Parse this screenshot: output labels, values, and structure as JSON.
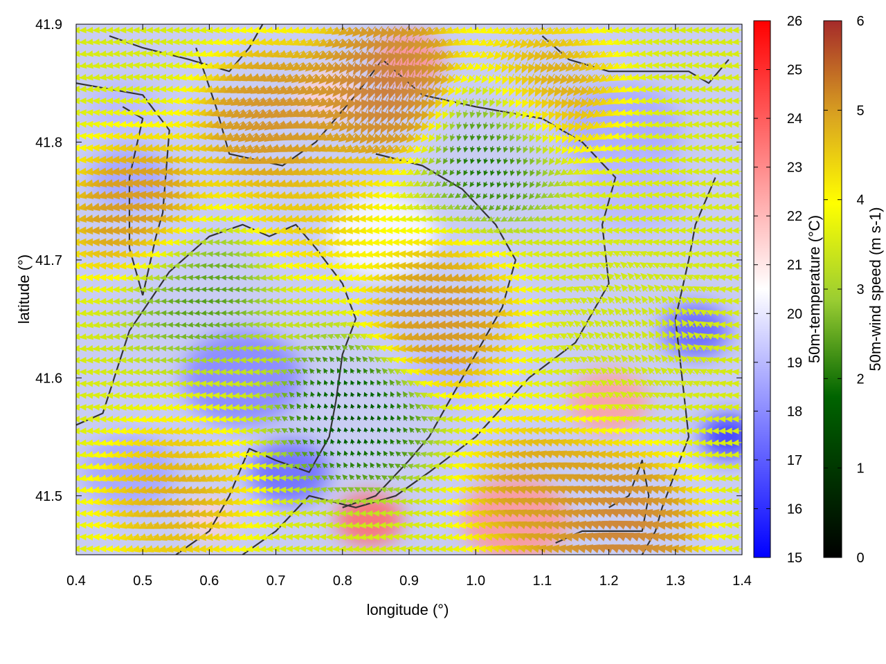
{
  "chart_data": {
    "type": "heatmap",
    "title": "",
    "xlabel": "longitude (°)",
    "ylabel": "latitude (°)",
    "xlim": [
      0.4,
      1.4
    ],
    "ylim": [
      41.45,
      41.9
    ],
    "x_ticks": [
      0.4,
      0.5,
      0.6,
      0.7,
      0.8,
      0.9,
      1.0,
      1.1,
      1.2,
      1.3,
      1.4
    ],
    "x_tick_labels": [
      "0.4",
      "0.5",
      "0.6",
      "0.7",
      "0.8",
      "0.9",
      "1.0",
      "1.1",
      "1.2",
      "1.3",
      "1.4"
    ],
    "y_ticks": [
      41.5,
      41.6,
      41.7,
      41.8,
      41.9
    ],
    "y_tick_labels": [
      "41.5",
      "41.6",
      "41.7",
      "41.8",
      "41.9"
    ],
    "grid": false,
    "temperature_colorbar": {
      "label": "50m-temperature (°C)",
      "range": [
        15,
        26
      ],
      "ticks": [
        15,
        16,
        17,
        18,
        19,
        20,
        21,
        22,
        23,
        24,
        25,
        26
      ],
      "tick_labels": [
        "15",
        "16",
        "17",
        "18",
        "19",
        "20",
        "21",
        "22",
        "23",
        "24",
        "25",
        "26"
      ],
      "colors": [
        "#0000ff",
        "#ffffff",
        "#ff0000"
      ]
    },
    "wind_colorbar": {
      "label": "50m-wind speed (m s-1)",
      "range": [
        0,
        6
      ],
      "ticks": [
        0,
        1,
        2,
        3,
        4,
        5,
        6
      ],
      "tick_labels": [
        "0",
        "1",
        "2",
        "3",
        "4",
        "5",
        "6"
      ],
      "colors": [
        "#000000",
        "#006400",
        "#9acd32",
        "#ffff00",
        "#daa520",
        "#cd853f",
        "#a52a2a"
      ]
    },
    "temperature_patches": [
      {
        "lon": 0.48,
        "lat": 41.77,
        "t": 18.5,
        "r": 0.06
      },
      {
        "lon": 0.47,
        "lat": 41.83,
        "t": 19.0,
        "r": 0.05
      },
      {
        "lon": 0.65,
        "lat": 41.6,
        "t": 17.8,
        "r": 0.09
      },
      {
        "lon": 0.48,
        "lat": 41.52,
        "t": 18.5,
        "r": 0.07
      },
      {
        "lon": 0.72,
        "lat": 41.52,
        "t": 17.2,
        "r": 0.06
      },
      {
        "lon": 0.84,
        "lat": 41.48,
        "t": 23.8,
        "r": 0.05
      },
      {
        "lon": 0.9,
        "lat": 41.87,
        "t": 23.0,
        "r": 0.05
      },
      {
        "lon": 0.78,
        "lat": 41.84,
        "t": 21.5,
        "r": 0.05
      },
      {
        "lon": 1.22,
        "lat": 41.81,
        "t": 18.6,
        "r": 0.09
      },
      {
        "lon": 1.24,
        "lat": 41.76,
        "t": 19.0,
        "r": 0.08
      },
      {
        "lon": 1.33,
        "lat": 41.64,
        "t": 17.0,
        "r": 0.05
      },
      {
        "lon": 1.38,
        "lat": 41.55,
        "t": 16.0,
        "r": 0.04
      },
      {
        "lon": 1.2,
        "lat": 41.58,
        "t": 22.6,
        "r": 0.06
      },
      {
        "lon": 1.06,
        "lat": 41.48,
        "t": 22.8,
        "r": 0.08
      },
      {
        "lon": 0.95,
        "lat": 41.6,
        "t": 19.0,
        "r": 0.06
      },
      {
        "lon": 0.6,
        "lat": 41.48,
        "t": 21.5,
        "r": 0.04
      },
      {
        "lon": 0.86,
        "lat": 41.72,
        "t": 20.5,
        "r": 0.08
      }
    ],
    "wind_field": {
      "lon_spacing": 0.01,
      "lat_spacing": 0.01,
      "regions": [
        {
          "lon": 0.87,
          "lat": 41.85,
          "speed": 5.7,
          "dir_deg": 265
        },
        {
          "lon": 0.7,
          "lat": 41.82,
          "speed": 5.0,
          "dir_deg": 220
        },
        {
          "lon": 0.5,
          "lat": 41.74,
          "speed": 4.8,
          "dir_deg": 185
        },
        {
          "lon": 0.95,
          "lat": 41.65,
          "speed": 4.8,
          "dir_deg": 190
        },
        {
          "lon": 0.75,
          "lat": 41.75,
          "speed": 3.8,
          "dir_deg": 190
        },
        {
          "lon": 0.55,
          "lat": 41.5,
          "speed": 4.2,
          "dir_deg": 200
        },
        {
          "lon": 1.1,
          "lat": 41.5,
          "speed": 4.5,
          "dir_deg": 160
        },
        {
          "lon": 1.22,
          "lat": 41.47,
          "speed": 5.5,
          "dir_deg": 160
        },
        {
          "lon": 1.1,
          "lat": 41.84,
          "speed": 4.5,
          "dir_deg": 250
        },
        {
          "lon": 0.82,
          "lat": 41.57,
          "speed": 0.4,
          "dir_deg": 90
        },
        {
          "lon": 1.03,
          "lat": 41.8,
          "speed": 0.5,
          "dir_deg": 270
        },
        {
          "lon": 0.58,
          "lat": 41.68,
          "speed": 1.2,
          "dir_deg": 180
        },
        {
          "lon": 1.25,
          "lat": 41.64,
          "speed": 2.5,
          "dir_deg": 110
        }
      ],
      "background_speed": 2.6,
      "background_dir_deg": 182
    },
    "contours": [
      [
        [
          0.45,
          41.89
        ],
        [
          0.5,
          41.88
        ],
        [
          0.57,
          41.87
        ],
        [
          0.63,
          41.86
        ],
        [
          0.66,
          41.88
        ],
        [
          0.68,
          41.9
        ]
      ],
      [
        [
          0.4,
          41.85
        ],
        [
          0.5,
          41.84
        ],
        [
          0.54,
          41.81
        ],
        [
          0.53,
          41.74
        ],
        [
          0.52,
          41.72
        ],
        [
          0.5,
          41.67
        ]
      ],
      [
        [
          0.5,
          41.67
        ],
        [
          0.48,
          41.71
        ],
        [
          0.48,
          41.77
        ],
        [
          0.5,
          41.82
        ],
        [
          0.47,
          41.83
        ]
      ],
      [
        [
          0.58,
          41.88
        ],
        [
          0.61,
          41.83
        ],
        [
          0.63,
          41.79
        ],
        [
          0.71,
          41.78
        ],
        [
          0.76,
          41.8
        ],
        [
          0.82,
          41.84
        ],
        [
          0.86,
          41.87
        ],
        [
          0.92,
          41.84
        ],
        [
          1.0,
          41.83
        ],
        [
          1.1,
          41.82
        ],
        [
          1.16,
          41.8
        ],
        [
          1.21,
          41.77
        ],
        [
          1.19,
          41.73
        ],
        [
          1.2,
          41.68
        ],
        [
          1.15,
          41.63
        ],
        [
          1.08,
          41.6
        ],
        [
          1.0,
          41.55
        ],
        [
          0.93,
          41.52
        ],
        [
          0.88,
          41.5
        ],
        [
          0.82,
          41.49
        ],
        [
          0.75,
          41.5
        ],
        [
          0.7,
          41.47
        ],
        [
          0.65,
          41.45
        ]
      ],
      [
        [
          0.4,
          41.56
        ],
        [
          0.44,
          41.57
        ],
        [
          0.48,
          41.64
        ],
        [
          0.54,
          41.69
        ],
        [
          0.6,
          41.72
        ],
        [
          0.65,
          41.73
        ],
        [
          0.69,
          41.72
        ],
        [
          0.73,
          41.73
        ],
        [
          0.76,
          41.71
        ],
        [
          0.8,
          41.68
        ],
        [
          0.82,
          41.65
        ],
        [
          0.8,
          41.62
        ],
        [
          0.79,
          41.58
        ],
        [
          0.78,
          41.55
        ],
        [
          0.75,
          41.52
        ],
        [
          0.7,
          41.53
        ],
        [
          0.66,
          41.54
        ],
        [
          0.63,
          41.5
        ],
        [
          0.6,
          41.47
        ],
        [
          0.55,
          41.45
        ]
      ],
      [
        [
          0.85,
          41.79
        ],
        [
          0.92,
          41.78
        ],
        [
          0.98,
          41.76
        ],
        [
          1.03,
          41.73
        ],
        [
          1.06,
          41.7
        ],
        [
          1.04,
          41.66
        ],
        [
          1.0,
          41.62
        ],
        [
          0.96,
          41.58
        ],
        [
          0.93,
          41.55
        ],
        [
          0.9,
          41.53
        ],
        [
          0.85,
          41.5
        ],
        [
          0.8,
          41.49
        ]
      ],
      [
        [
          1.1,
          41.89
        ],
        [
          1.14,
          41.87
        ],
        [
          1.2,
          41.86
        ],
        [
          1.26,
          41.86
        ],
        [
          1.32,
          41.86
        ],
        [
          1.35,
          41.85
        ],
        [
          1.38,
          41.87
        ]
      ],
      [
        [
          1.36,
          41.77
        ],
        [
          1.33,
          41.73
        ],
        [
          1.32,
          41.7
        ],
        [
          1.3,
          41.65
        ],
        [
          1.31,
          41.6
        ],
        [
          1.32,
          41.55
        ],
        [
          1.3,
          41.52
        ],
        [
          1.28,
          41.49
        ],
        [
          1.27,
          41.47
        ],
        [
          1.25,
          41.45
        ]
      ],
      [
        [
          1.12,
          41.46
        ],
        [
          1.16,
          41.47
        ],
        [
          1.22,
          41.47
        ],
        [
          1.25,
          41.47
        ],
        [
          1.26,
          41.5
        ],
        [
          1.25,
          41.53
        ],
        [
          1.23,
          41.5
        ],
        [
          1.2,
          41.49
        ]
      ]
    ]
  }
}
